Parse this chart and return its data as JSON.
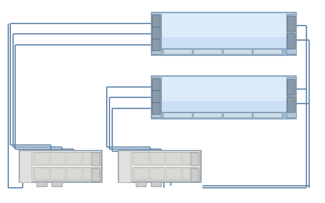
{
  "bg_color": "#ffffff",
  "controller_fill": "#cce0f5",
  "controller_stroke": "#7a9ab5",
  "controller_highlight": "#e8f4ff",
  "shelf_fill": "#f0f0ee",
  "shelf_stroke": "#8a9aaa",
  "shelf_inner": "#e8e8e4",
  "port_dark": "#8899aa",
  "port_mid": "#aabbcc",
  "port_light": "#ddeeff",
  "line_color": "#6688aa",
  "line_width": 1.3
}
